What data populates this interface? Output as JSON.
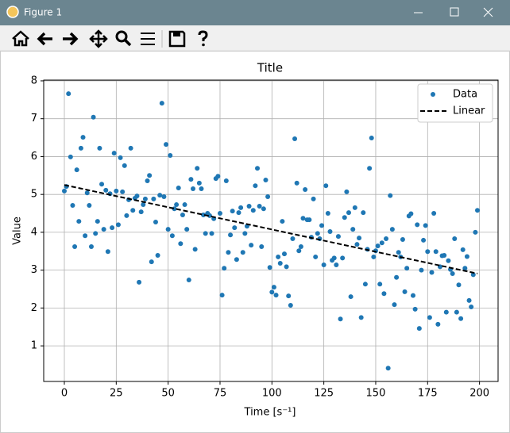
{
  "window": {
    "title": "Figure 1"
  },
  "chart_data": {
    "type": "scatter",
    "title": "Title",
    "xlabel": "Time [s⁻¹]",
    "ylabel": "Value",
    "x": [
      0,
      1,
      2,
      3,
      4,
      5,
      6,
      7,
      8,
      9,
      10,
      11,
      12,
      13,
      14,
      15,
      16,
      17,
      18,
      19,
      20,
      21,
      22,
      23,
      24,
      25,
      26,
      27,
      28,
      29,
      30,
      31,
      32,
      33,
      34,
      35,
      36,
      37,
      38,
      39,
      40,
      41,
      42,
      43,
      44,
      45,
      46,
      47,
      48,
      49,
      50,
      51,
      52,
      53,
      54,
      55,
      56,
      57,
      58,
      59,
      60,
      61,
      62,
      63,
      64,
      65,
      66,
      67,
      68,
      69,
      70,
      71,
      72,
      73,
      74,
      75,
      76,
      77,
      78,
      79,
      80,
      81,
      82,
      83,
      84,
      85,
      86,
      87,
      88,
      89,
      90,
      91,
      92,
      93,
      94,
      95,
      96,
      97,
      98,
      99,
      100,
      101,
      102,
      103,
      104,
      105,
      106,
      107,
      108,
      109,
      110,
      111,
      112,
      113,
      114,
      115,
      116,
      117,
      118,
      119,
      120,
      121,
      122,
      123,
      124,
      125,
      126,
      127,
      128,
      129,
      130,
      131,
      132,
      133,
      134,
      135,
      136,
      137,
      138,
      139,
      140,
      141,
      142,
      143,
      144,
      145,
      146,
      147,
      148,
      149,
      150,
      151,
      152,
      153,
      154,
      155,
      156,
      157,
      158,
      159,
      160,
      161,
      162,
      163,
      164,
      165,
      166,
      167,
      168,
      169,
      170,
      171,
      172,
      173,
      174,
      175,
      176,
      177,
      178,
      179,
      180,
      181,
      182,
      183,
      184,
      185,
      186,
      187,
      188,
      189,
      190,
      191,
      192,
      193,
      194,
      195,
      196,
      197,
      198,
      199
    ],
    "series": [
      {
        "name": "Data",
        "color": "#1f77b4",
        "marker": "dot",
        "values": [
          5.09,
          5.21,
          7.66,
          5.99,
          4.71,
          3.62,
          5.65,
          4.29,
          6.22,
          6.51,
          3.91,
          5.04,
          4.71,
          3.62,
          7.04,
          3.97,
          4.29,
          6.22,
          5.27,
          4.08,
          5.11,
          3.49,
          5.02,
          4.12,
          6.09,
          5.09,
          4.2,
          5.97,
          5.07,
          5.76,
          4.44,
          4.86,
          6.22,
          4.58,
          4.9,
          4.96,
          2.68,
          4.54,
          4.73,
          4.88,
          5.36,
          5.5,
          3.22,
          4.88,
          4.27,
          3.39,
          4.98,
          7.41,
          4.94,
          6.32,
          4.08,
          6.03,
          3.91,
          4.62,
          4.73,
          5.17,
          3.7,
          4.46,
          4.73,
          4.08,
          2.74,
          5.4,
          5.15,
          3.55,
          5.69,
          5.3,
          5.15,
          4.46,
          3.97,
          4.5,
          4.44,
          3.97,
          4.36,
          5.42,
          5.48,
          4.5,
          2.34,
          3.05,
          5.36,
          3.47,
          3.93,
          4.56,
          4.12,
          3.28,
          4.52,
          4.65,
          3.47,
          3.97,
          4.16,
          4.69,
          3.66,
          4.58,
          5.23,
          5.69,
          4.69,
          3.62,
          4.62,
          5.38,
          4.94,
          3.07,
          2.42,
          2.55,
          2.34,
          3.35,
          3.18,
          4.29,
          3.43,
          3.09,
          2.32,
          2.07,
          3.83,
          6.47,
          5.3,
          3.51,
          3.62,
          4.37,
          5.13,
          4.33,
          4.33,
          3.87,
          4.88,
          3.35,
          3.97,
          3.83,
          4.18,
          3.14,
          5.23,
          4.5,
          4.02,
          3.26,
          3.32,
          3.14,
          3.89,
          1.71,
          3.32,
          4.39,
          5.07,
          4.52,
          2.3,
          4.08,
          4.65,
          3.68,
          3.85,
          1.75,
          4.52,
          2.63,
          3.55,
          5.69,
          6.49,
          3.35,
          3.51,
          3.64,
          2.63,
          3.72,
          2.38,
          3.83,
          0.41,
          4.97,
          4.08,
          2.09,
          2.81,
          3.47,
          3.35,
          3.81,
          2.43,
          3.05,
          4.43,
          4.49,
          2.33,
          1.97,
          4.2,
          1.46,
          3.0,
          3.79,
          4.18,
          3.49,
          1.75,
          2.94,
          4.5,
          3.49,
          1.57,
          3.09,
          3.38,
          3.39,
          1.89,
          3.25,
          3.02,
          2.91,
          3.83,
          1.89,
          2.61,
          1.72,
          3.54,
          3.05,
          3.36,
          2.2,
          2.03,
          2.88,
          4.0,
          4.58
        ]
      },
      {
        "name": "Linear",
        "color": "#000000",
        "marker": "dashed-line",
        "x": [
          0,
          199
        ],
        "values": [
          5.25,
          2.91
        ]
      }
    ],
    "xlim": [
      -9.95,
      208.95
    ],
    "ylim": [
      0.06,
      8.02
    ],
    "xticks": [
      0,
      25,
      50,
      75,
      100,
      125,
      150,
      175,
      200
    ],
    "yticks": [
      1,
      2,
      3,
      4,
      5,
      6,
      7,
      8
    ],
    "grid": true,
    "legend": "upper right"
  }
}
